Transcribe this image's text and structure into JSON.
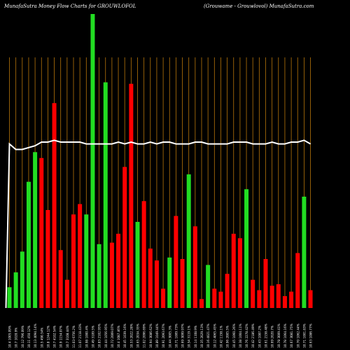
{
  "chart_data": {
    "type": "bar",
    "title": "MunafaSutra  Money Flow  Charts for GROUWLOFOL",
    "subtitle": "(Grouwame -  Grouwlovol) MunafaSutra.com",
    "bar_colors": {
      "up": "#22dd22",
      "down": "#ff0000"
    },
    "gridline_color": "#b8760a",
    "line_color": "#ffffff",
    "background": "#000000",
    "categories": [
      "10.4 1005.09%",
      "10.7 1020.9%",
      "10.12 796.09%",
      "10.11 450.12%",
      "10.13 4094.14%",
      "10.5 490.54%",
      "10.8 1244.12%",
      "10.7 4102.54%",
      "10.9 1154.07%",
      "10.7 3108.44%",
      "11.03 6756.2%",
      "11.07 2118.43%",
      "10.98 1000.4%",
      "10.49 3109.5%",
      "10.83 2102.95%",
      "10.44 1056.95%",
      "10.72 2009.07%",
      "10.4 1087.46%",
      "10.45 1039.16%",
      "10.53 2022.28%",
      "10.65 2034.35%",
      "11.02 2096.69%",
      "10.94 3086.62%",
      "10.89 1049.44%",
      "10.91 2093.67%",
      "10.44 3005.3%",
      "10.71 1009.73%",
      "10.69 3099.97%",
      "10.54 3119.1%",
      "10.14 1108.9%",
      "10.35 2029.13%",
      "10.16 4021.47%",
      "10.12 4065.45%",
      "10.42 1158.1%",
      "10.96 2005.5%",
      "10.45 1060.26%",
      "10.38 1004.11%",
      "10.76 2278.42%",
      "10.42 2186.49%",
      "10.43 1087.2%",
      "10.61 2158.48%",
      "10.69 2020.7%",
      "10.78 3009.41%",
      "10.78 1064.16%",
      "10.67 3081.75%",
      "10.70 1062.44%",
      "10.71 1001.83%",
      "10.63 1086.77%"
    ],
    "values": [
      1.4,
      2.4,
      3.8,
      8.5,
      10.5,
      -10.1,
      -6.6,
      -13.8,
      -3.9,
      -1.9,
      -6.3,
      -7.0,
      6.3,
      19.8,
      4.3,
      15.2,
      -4.4,
      -5.0,
      -9.5,
      -15.1,
      5.8,
      -7.2,
      -4.0,
      -3.2,
      -1.3,
      3.4,
      -6.2,
      -3.3,
      9.0,
      -5.5,
      -0.6,
      2.9,
      -1.3,
      -1.1,
      -2.3,
      -5.0,
      -4.7,
      8.0,
      -1.9,
      -1.2,
      -3.3,
      -1.5,
      -1.6,
      -0.8,
      -1.1,
      -3.7,
      7.5,
      -1.2
    ],
    "line_values": [
      0.9,
      0.87,
      0.87,
      0.88,
      0.89,
      0.91,
      0.91,
      0.92,
      0.91,
      0.91,
      0.91,
      0.91,
      0.9,
      0.9,
      0.9,
      0.9,
      0.9,
      0.91,
      0.9,
      0.91,
      0.9,
      0.9,
      0.91,
      0.9,
      0.91,
      0.91,
      0.9,
      0.9,
      0.9,
      0.91,
      0.91,
      0.9,
      0.9,
      0.9,
      0.9,
      0.91,
      0.91,
      0.91,
      0.9,
      0.9,
      0.9,
      0.91,
      0.9,
      0.9,
      0.91,
      0.91,
      0.92,
      0.9
    ]
  }
}
